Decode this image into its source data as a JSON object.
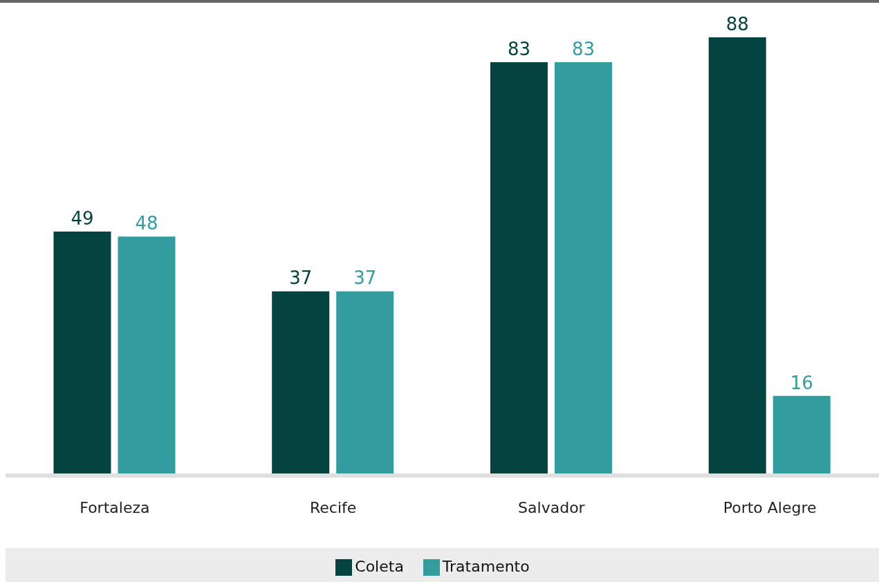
{
  "chart_data": {
    "type": "bar",
    "categories": [
      "Fortaleza",
      "Recife",
      "Salvador",
      "Porto Alegre"
    ],
    "series": [
      {
        "name": "Coleta",
        "color": "#054341",
        "values": [
          49,
          37,
          83,
          88
        ]
      },
      {
        "name": "Tratamento",
        "color": "#339c9e",
        "values": [
          48,
          37,
          83,
          16
        ]
      }
    ],
    "data_labels": true,
    "legend": "bottom",
    "grid": false
  }
}
